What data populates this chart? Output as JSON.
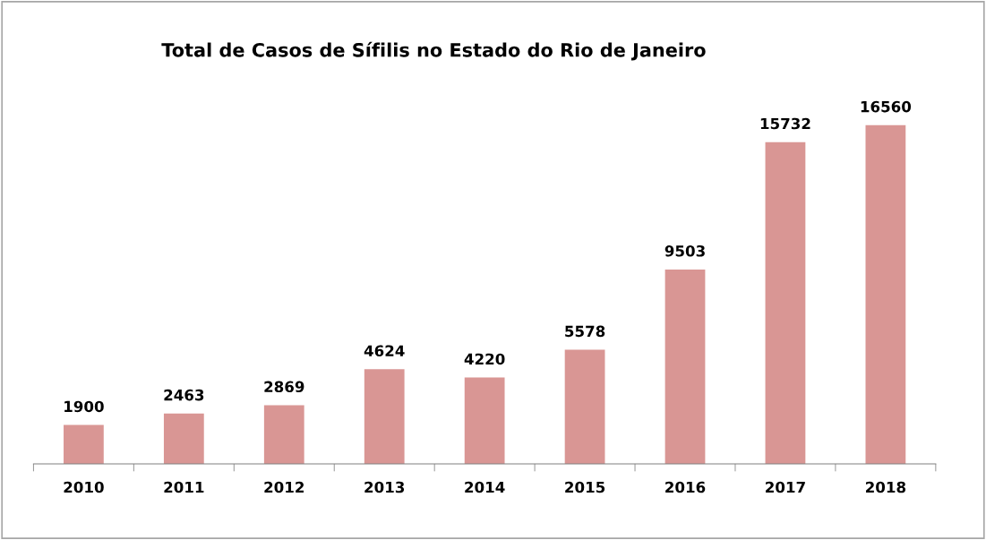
{
  "chart_data": {
    "type": "bar",
    "title": "Total de Casos de Sífilis no Estado do Rio de Janeiro",
    "categories": [
      "2010",
      "2011",
      "2012",
      "2013",
      "2014",
      "2015",
      "2016",
      "2017",
      "2018"
    ],
    "values": [
      1900,
      2463,
      2869,
      4624,
      4220,
      5578,
      9503,
      15732,
      16560
    ],
    "color": "#d99694",
    "data_labels": true,
    "grid": false,
    "legend": false
  }
}
